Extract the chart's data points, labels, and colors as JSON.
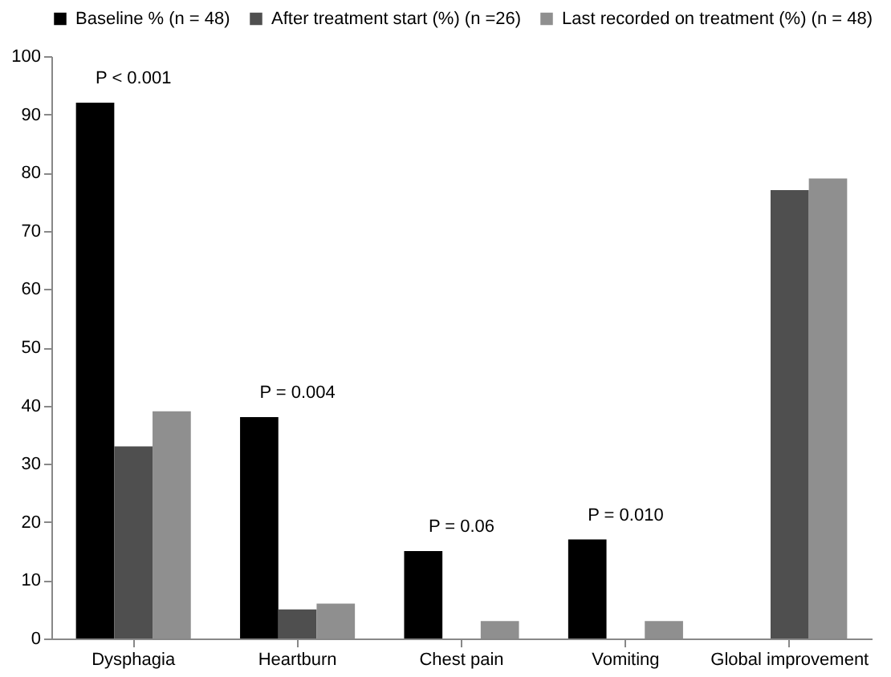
{
  "chart_data": {
    "type": "bar",
    "categories": [
      "Dysphagia",
      "Heartburn",
      "Chest pain",
      "Vomiting",
      "Global improvement"
    ],
    "series": [
      {
        "name": "Baseline % (n = 48)",
        "color": "#000000",
        "values": [
          92,
          38,
          15,
          17,
          null
        ]
      },
      {
        "name": "After treatment start (%) (n =26)",
        "color": "#4f4f4f",
        "values": [
          33,
          5,
          null,
          null,
          77
        ]
      },
      {
        "name": "Last recorded on treatment (%) (n = 48)",
        "color": "#8f8f8f",
        "values": [
          39,
          6,
          3,
          3,
          79
        ]
      }
    ],
    "ylim": [
      0,
      100
    ],
    "yticks": [
      0,
      10,
      20,
      30,
      40,
      50,
      60,
      70,
      80,
      90,
      100
    ],
    "grid": false,
    "legend": "top",
    "annotations": [
      "P < 0.001",
      "P = 0.004",
      "P = 0.06",
      "P = 0.010"
    ]
  }
}
